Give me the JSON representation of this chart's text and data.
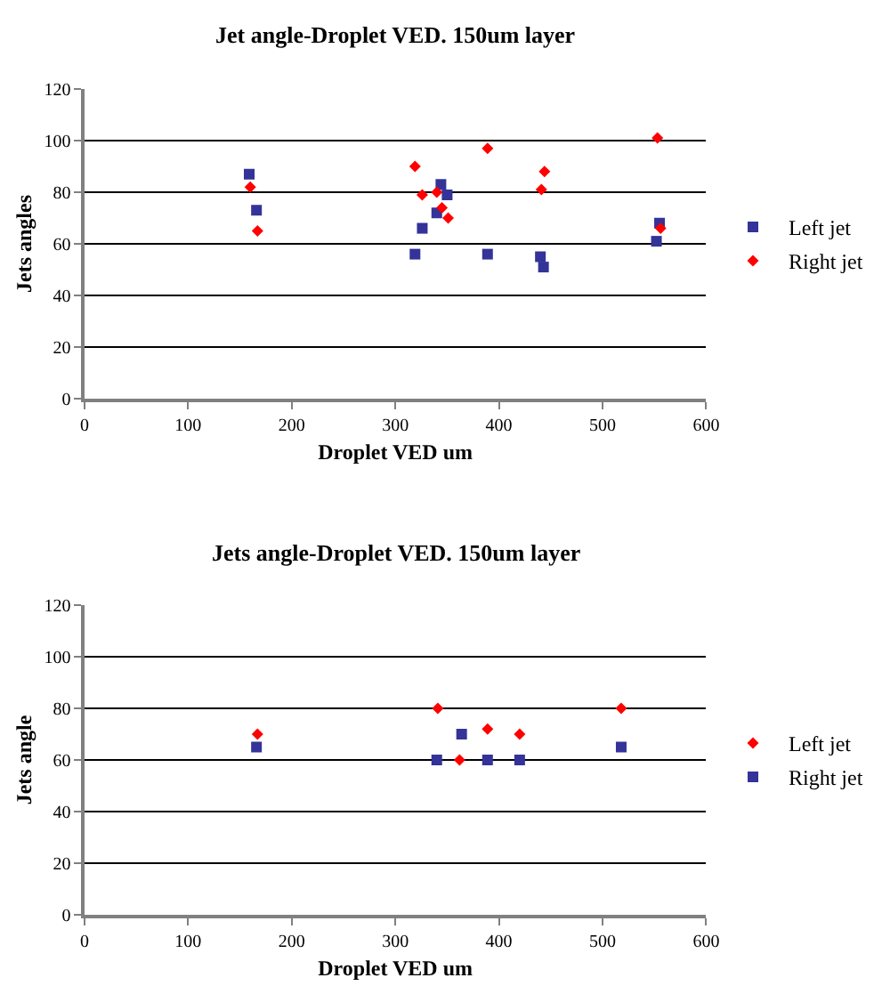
{
  "chart_data": [
    {
      "type": "scatter",
      "title": "Jet angle-Droplet VED. 150um layer",
      "xlabel": "Droplet VED um",
      "ylabel": "Jets angles",
      "xlim": [
        0,
        600
      ],
      "xticks": [
        0,
        100,
        200,
        300,
        400,
        500,
        600
      ],
      "ylim": [
        0,
        120
      ],
      "yticks": [
        0,
        20,
        40,
        60,
        80,
        100,
        120
      ],
      "grid": "y",
      "legend": "right",
      "series": [
        {
          "name": "Left jet",
          "color": "#333399",
          "marker": "square",
          "x": [
            159,
            166,
            319,
            326,
            340,
            344,
            350,
            389,
            440,
            443,
            555,
            552
          ],
          "values": [
            87,
            73,
            56,
            66,
            72,
            83,
            79,
            56,
            55,
            51,
            68,
            61
          ]
        },
        {
          "name": "Right jet",
          "color": "#ff0000",
          "marker": "diamond",
          "x": [
            160,
            167,
            319,
            326,
            340,
            345,
            351,
            389,
            441,
            444,
            553,
            556
          ],
          "values": [
            82,
            65,
            90,
            79,
            80,
            74,
            70,
            97,
            81,
            88,
            101,
            66
          ]
        }
      ]
    },
    {
      "type": "scatter",
      "title": "Jets angle-Droplet VED. 150um layer",
      "xlabel": "Droplet VED um",
      "ylabel": "Jets angle",
      "xlim": [
        0,
        600
      ],
      "xticks": [
        0,
        100,
        200,
        300,
        400,
        500,
        600
      ],
      "ylim": [
        0,
        120
      ],
      "yticks": [
        0,
        20,
        40,
        60,
        80,
        100,
        120
      ],
      "grid": "y",
      "legend": "right",
      "series": [
        {
          "name": "Left jet",
          "color": "#ff0000",
          "marker": "diamond",
          "x": [
            167,
            341,
            362,
            389,
            420,
            518
          ],
          "values": [
            70,
            80,
            60,
            72,
            70,
            80
          ]
        },
        {
          "name": "Right jet",
          "color": "#333399",
          "marker": "square",
          "x": [
            166,
            340,
            364,
            389,
            420,
            518
          ],
          "values": [
            65,
            60,
            70,
            60,
            60,
            65
          ]
        }
      ]
    }
  ]
}
